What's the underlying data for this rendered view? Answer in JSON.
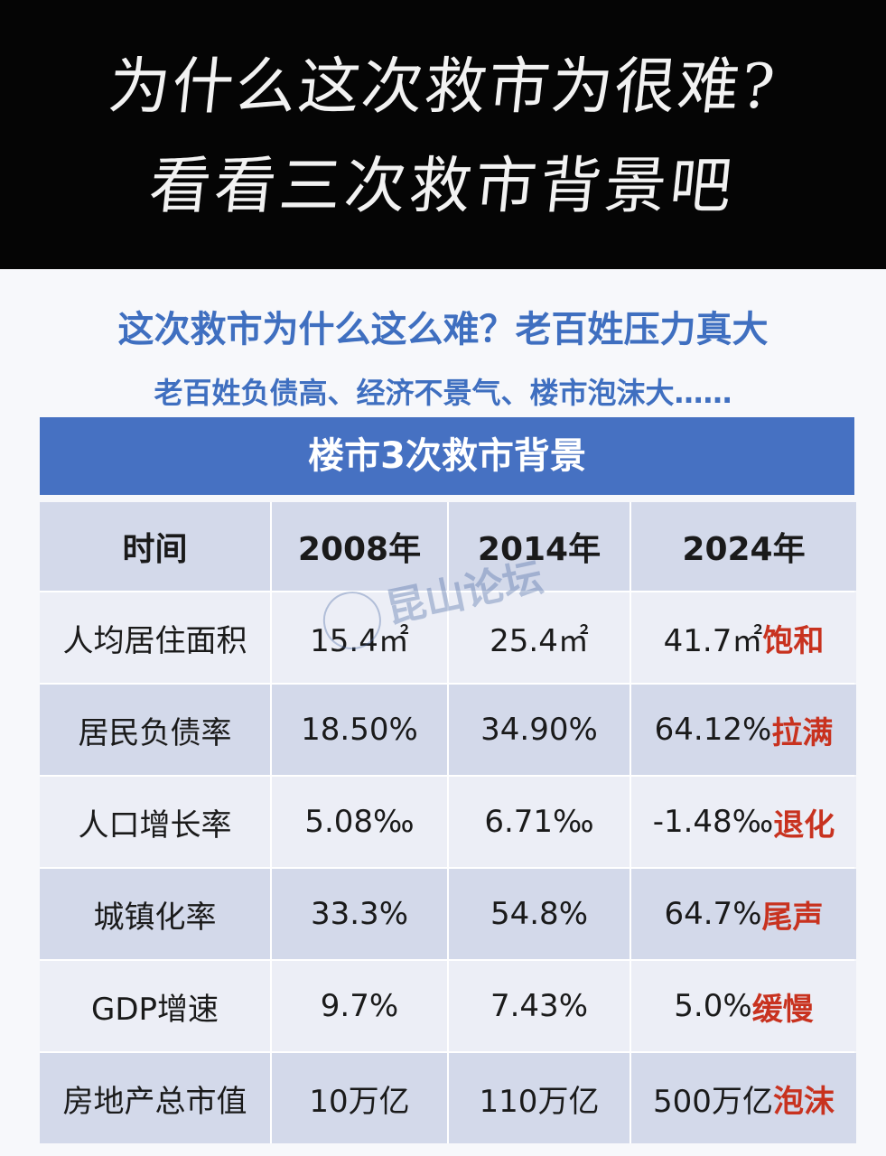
{
  "header": {
    "line1": "为什么这次救市为很难?",
    "line2": "看看三次救市背景吧"
  },
  "title": "这次救市为什么这么难？老百姓压力真大",
  "subtitle": "老百姓负债高、经济不景气、楼市泡沫大……",
  "table": {
    "caption": "楼市3次救市背景",
    "columns": [
      "时间",
      "2008年",
      "2014年",
      "2024年"
    ],
    "rows": [
      {
        "label": "人均居住面积",
        "v2008": "15.4㎡",
        "v2014": "25.4㎡",
        "v2024": "41.7㎡",
        "tag": "饱和"
      },
      {
        "label": "居民负债率",
        "v2008": "18.50%",
        "v2014": "34.90%",
        "v2024": "64.12%",
        "tag": "拉满"
      },
      {
        "label": "人口增长率",
        "v2008": "5.08‰",
        "v2014": "6.71‰",
        "v2024": "-1.48‰",
        "tag": "退化"
      },
      {
        "label": "城镇化率",
        "v2008": "33.3%",
        "v2014": "54.8%",
        "v2024": "64.7%",
        "tag": "尾声"
      },
      {
        "label": "GDP增速",
        "v2008": "9.7%",
        "v2014": "7.43%",
        "v2024": "5.0%",
        "tag": "缓慢"
      },
      {
        "label": "房地产总市值",
        "v2008": "10万亿",
        "v2014": "110万亿",
        "v2024": "500万亿",
        "tag": "泡沫"
      }
    ]
  },
  "watermark": "昆山论坛",
  "colors": {
    "accent": "#4671c2",
    "tag": "#c8321f"
  }
}
